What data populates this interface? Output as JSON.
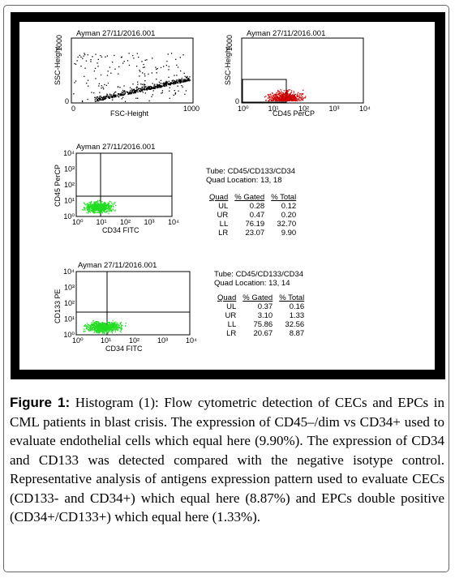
{
  "plots": [
    {
      "header": "Ayman 27/11/2016.001",
      "ylabel": "SSC-Height",
      "xlabel": "FSC-Height",
      "ytick_top": "1000",
      "x_ticks": [
        "0",
        "1000"
      ],
      "y_ticks": [
        "0"
      ],
      "dot_color": "#000000"
    },
    {
      "header": "Ayman   27/11/2016.001",
      "ylabel": "SSC-Height",
      "xlabel": "CD45 PerCP",
      "ytick_top": "1000",
      "x_ticks": [
        "10⁰",
        "10¹",
        "10²",
        "10³",
        "10⁴"
      ],
      "y_ticks": [
        "0"
      ],
      "dot_color": "#cc0000"
    },
    {
      "header": "Ayman  27/11/2016.001",
      "ylabel": "CD45 PerCP",
      "xlabel": "CD34 FITC",
      "x_ticks": [
        "10⁰",
        "10¹",
        "10²",
        "10³",
        "10⁴"
      ],
      "y_ticks": [
        "10⁰",
        "10¹",
        "10²",
        "10³",
        "10⁴"
      ],
      "dot_color": "#22dd22"
    },
    {
      "header": "Ayman     27/11/2016.001",
      "ylabel": "CD133 PE",
      "xlabel": "CD34 FITC",
      "x_ticks": [
        "10⁰",
        "10¹",
        "10²",
        "10³",
        "10⁴"
      ],
      "y_ticks": [
        "10⁰",
        "10¹",
        "10²",
        "10³",
        "10⁴"
      ],
      "dot_color": "#22dd22"
    }
  ],
  "stats": [
    {
      "tube": "Tube: CD45/CD133/CD34",
      "quad_location": "Quad Location: 13, 18",
      "headers": [
        "Quad",
        "% Gated",
        "% Total"
      ],
      "rows": [
        [
          "UL",
          "0.28",
          "0.12"
        ],
        [
          "UR",
          "0.47",
          "0.20"
        ],
        [
          "LL",
          "76.19",
          "32.70"
        ],
        [
          "LR",
          "23.07",
          "9.90"
        ]
      ]
    },
    {
      "tube": "Tube: CD45/CD133/CD34",
      "quad_location": "Quad Location: 13, 14",
      "headers": [
        "Quad",
        "% Gated",
        "% Total"
      ],
      "rows": [
        [
          "UL",
          "0.37",
          "0.16"
        ],
        [
          "UR",
          "3.10",
          "1.33"
        ],
        [
          "LL",
          "75.86",
          "32.56"
        ],
        [
          "LR",
          "20.67",
          "8.87"
        ]
      ]
    }
  ],
  "caption": {
    "label": "Figure 1:",
    "text": " Histogram (1): Flow cytometric detection of CECs and EPCs in CML patients in blast crisis. The expression of CD45–/dim vs CD34+ used to evaluate endothelial cells which equal here (9.90%). The expression of CD34 and CD133 was detected compared with the negative isotype control. Representative analysis of antigens expression pattern used to evaluate CECs (CD133- and CD34+) which equal here (8.87%) and EPCs double positive (CD34+/CD133+) which equal here (1.33%)."
  }
}
